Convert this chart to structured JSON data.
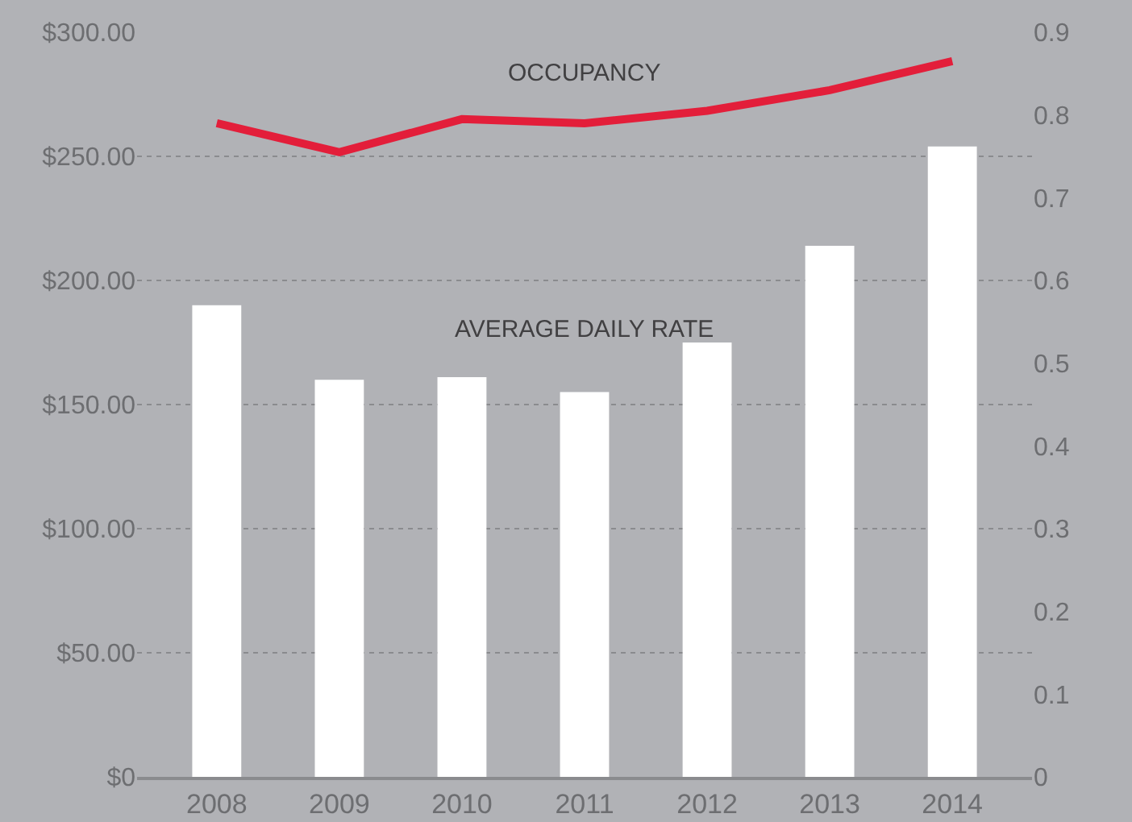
{
  "chart_data": {
    "type": "bar",
    "categories": [
      "2008",
      "2009",
      "2010",
      "2011",
      "2012",
      "2013",
      "2014"
    ],
    "series": [
      {
        "name": "AVERAGE DAILY RATE",
        "color": "#ffffff",
        "values": [
          190,
          160,
          161,
          155,
          175,
          214,
          254
        ]
      },
      {
        "name": "OCCUPANCY",
        "type": "line",
        "axis": "y2",
        "color": "#e31e3a",
        "values": [
          0.79,
          0.755,
          0.795,
          0.79,
          0.805,
          0.83,
          0.865
        ]
      }
    ],
    "ylim": [
      0,
      300
    ],
    "yticks": [
      {
        "value": 0,
        "label": "$0"
      },
      {
        "value": 50,
        "label": "$50.00"
      },
      {
        "value": 100,
        "label": "$100.00"
      },
      {
        "value": 150,
        "label": "$150.00"
      },
      {
        "value": 200,
        "label": "$200.00"
      },
      {
        "value": 250,
        "label": "$250.00"
      },
      {
        "value": 300,
        "label": "$300.00"
      }
    ],
    "y2lim": [
      0,
      0.9
    ],
    "y2ticks": [
      0,
      0.1,
      0.2,
      0.3,
      0.4,
      0.5,
      0.6,
      0.7,
      0.8,
      0.9
    ],
    "grid": "y",
    "legend": false,
    "marker": "none",
    "line_style": "solid"
  }
}
